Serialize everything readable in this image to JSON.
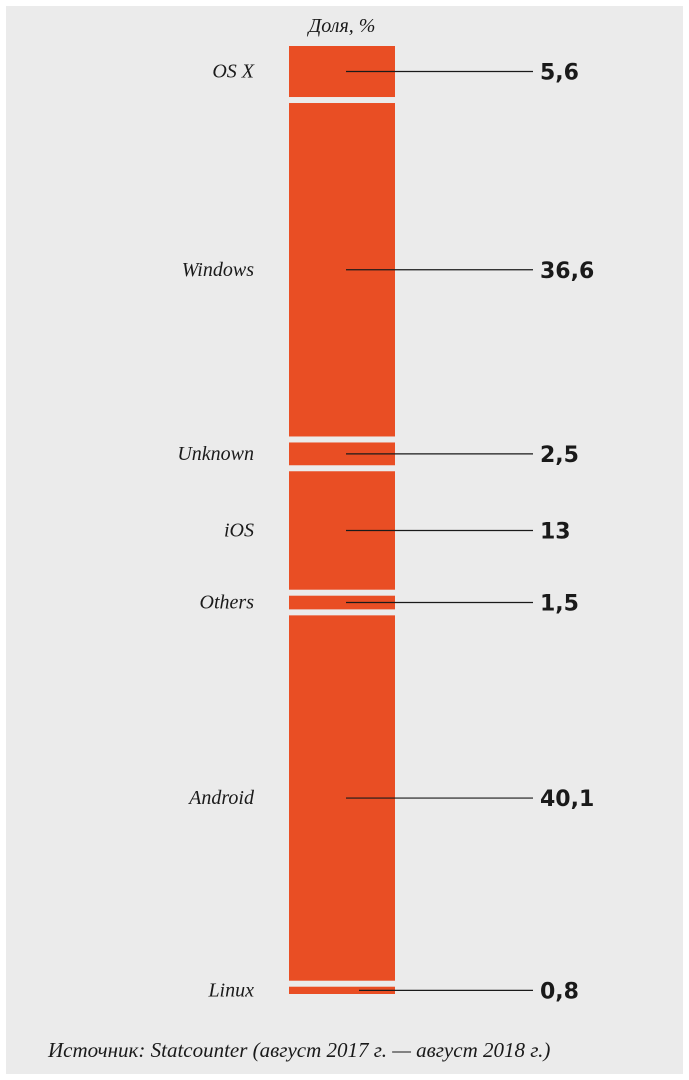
{
  "chart_data": {
    "type": "bar",
    "subtype": "stacked-100-percent-column",
    "header": "Доля, %",
    "categories": [
      "OS X",
      "Windows",
      "Unknown",
      "iOS",
      "Others",
      "Android",
      "Linux"
    ],
    "values": [
      5.6,
      36.6,
      2.5,
      13,
      1.5,
      40.1,
      0.8
    ],
    "value_labels": [
      "5,6",
      "36,6",
      "2,5",
      "13",
      "1,5",
      "40,1",
      "0,8"
    ],
    "bar_color": "#e94e24",
    "leader_color": "#1a1a1a",
    "background_color": "#ebebeb"
  },
  "source": "Источник: Statcounter (август 2017 г. — август 2018 г.)"
}
